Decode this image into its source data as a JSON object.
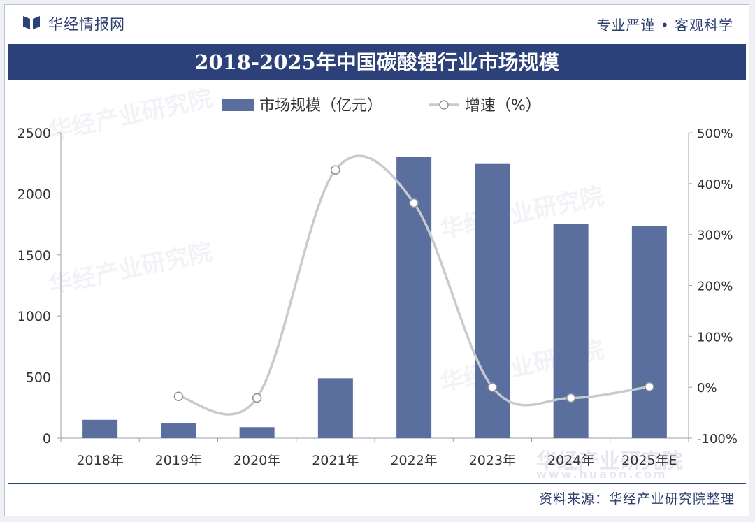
{
  "header": {
    "brand": "华经情报网",
    "slogan": "专业严谨 • 客观科学"
  },
  "title": "2018-2025年中国碳酸锂行业市场规模",
  "footer": {
    "source": "资料来源：华经产业研究院整理",
    "watermark_cn": "华经产业研究院",
    "watermark_url": "www.huaon.com"
  },
  "colors": {
    "bar": "#5b6f9e",
    "line": "#c7cacf",
    "title_bg": "#2c4179"
  },
  "chart_data": {
    "type": "bar+line",
    "title": "2018-2025年中国碳酸锂行业市场规模",
    "categories": [
      "2018年",
      "2019年",
      "2020年",
      "2021年",
      "2022年",
      "2023年",
      "2024年",
      "2025年E"
    ],
    "series": [
      {
        "name": "市场规模（亿元）",
        "type": "bar",
        "axis": "left",
        "values": [
          150,
          120,
          90,
          490,
          2300,
          2250,
          1755,
          1735
        ]
      },
      {
        "name": "增速（%）",
        "type": "line",
        "axis": "right",
        "values": [
          null,
          -18,
          -21,
          427,
          362,
          0,
          -21,
          1
        ]
      }
    ],
    "y_left": {
      "range": [
        0,
        2500
      ],
      "ticks": [
        "0",
        "500",
        "1000",
        "1500",
        "2000",
        "2500"
      ]
    },
    "y_right": {
      "range": [
        -100,
        500
      ],
      "ticks": [
        "-100%",
        "0%",
        "100%",
        "200%",
        "300%",
        "400%",
        "500%"
      ]
    },
    "legend": {
      "position": "top-center",
      "items": [
        "市场规模（亿元）",
        "增速（%）"
      ]
    }
  }
}
